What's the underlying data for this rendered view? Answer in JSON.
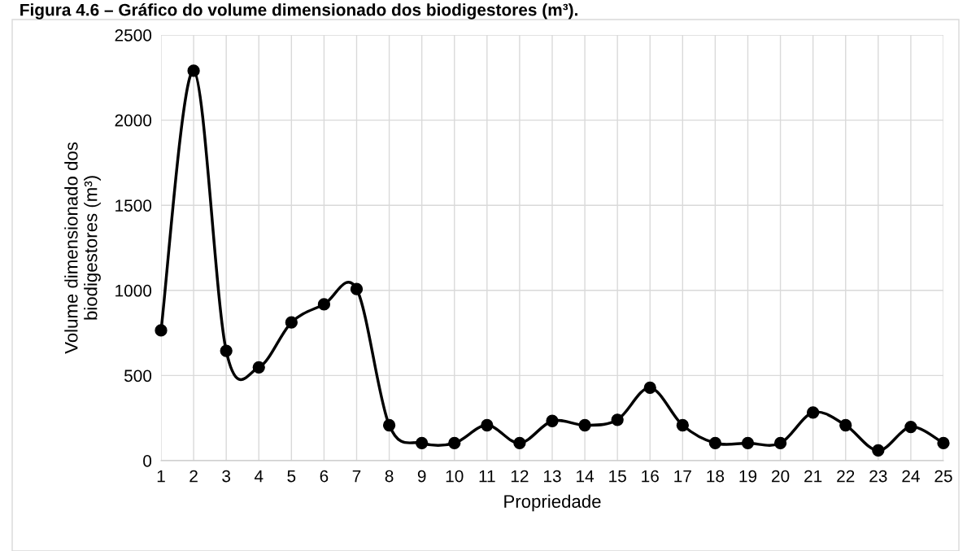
{
  "chart_data": {
    "type": "line",
    "title": "Figura 4.6 – Gráfico do volume dimensionado dos biodigestores (m³).",
    "xlabel": "Propriedade",
    "ylabel": "Volume dimensionado dos\nbiodigestores (m³)",
    "categories": [
      "1",
      "2",
      "3",
      "4",
      "5",
      "6",
      "7",
      "8",
      "9",
      "10",
      "11",
      "12",
      "13",
      "14",
      "15",
      "16",
      "17",
      "18",
      "19",
      "20",
      "21",
      "22",
      "23",
      "24",
      "25"
    ],
    "series": [
      {
        "color": "#000000",
        "values": [
          765,
          2290,
          645,
          548,
          812,
          918,
          1008,
          208,
          103,
          103,
          208,
          103,
          233,
          208,
          240,
          428,
          208,
          103,
          103,
          103,
          283,
          208,
          60,
          198,
          103
        ]
      }
    ],
    "ylim": [
      0,
      2500
    ],
    "yticks": [
      0,
      500,
      1000,
      1500,
      2000,
      2500
    ],
    "grid": true,
    "marker": "circle",
    "line_style": "solid",
    "legend": false
  }
}
